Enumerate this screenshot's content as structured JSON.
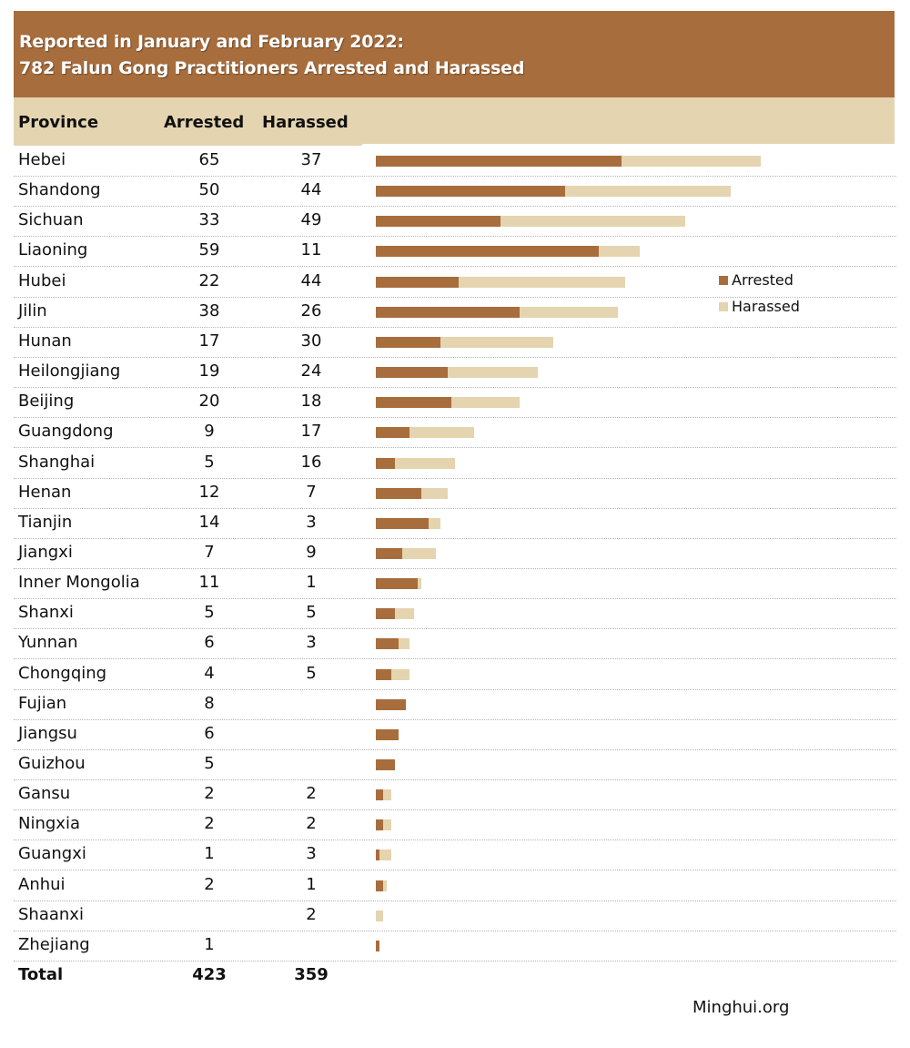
{
  "title": {
    "line1": "Reported in January and February 2022:",
    "line2": "782 Falun Gong Practitioners Arrested and Harassed"
  },
  "table_headers": {
    "province": "Province",
    "arrested": "Arrested",
    "harassed": "Harassed"
  },
  "colors": {
    "arrested": "#a86d3c",
    "harassed": "#e4d4af"
  },
  "legend": {
    "arrested": "Arrested",
    "harassed": "Harassed"
  },
  "total": {
    "label": "Total",
    "arrested": "423",
    "harassed": "359"
  },
  "source": "Minghui.org",
  "chart_data": {
    "type": "bar",
    "orientation": "horizontal",
    "stacked": true,
    "title": "Reported in January and February 2022: 782 Falun Gong Practitioners Arrested and Harassed",
    "legend_position": "right",
    "categories": [
      "Hebei",
      "Shandong",
      "Sichuan",
      "Liaoning",
      "Hubei",
      "Jilin",
      "Hunan",
      "Heilongjiang",
      "Beijing",
      "Guangdong",
      "Shanghai",
      "Henan",
      "Tianjin",
      "Jiangxi",
      "Inner Mongolia",
      "Shanxi",
      "Yunnan",
      "Chongqing",
      "Fujian",
      "Jiangsu",
      "Guizhou",
      "Gansu",
      "Ningxia",
      "Guangxi",
      "Anhui",
      "Shaanxi",
      "Zhejiang"
    ],
    "series": [
      {
        "name": "Arrested",
        "values": [
          65,
          50,
          33,
          59,
          22,
          38,
          17,
          19,
          20,
          9,
          5,
          12,
          14,
          7,
          11,
          5,
          6,
          4,
          8,
          6,
          5,
          2,
          2,
          1,
          2,
          null,
          1
        ]
      },
      {
        "name": "Harassed",
        "values": [
          37,
          44,
          49,
          11,
          44,
          26,
          30,
          24,
          18,
          17,
          16,
          7,
          3,
          9,
          1,
          5,
          3,
          5,
          null,
          null,
          null,
          2,
          2,
          3,
          1,
          2,
          null
        ]
      }
    ],
    "xlim": [
      0,
      110
    ],
    "grid": false
  }
}
